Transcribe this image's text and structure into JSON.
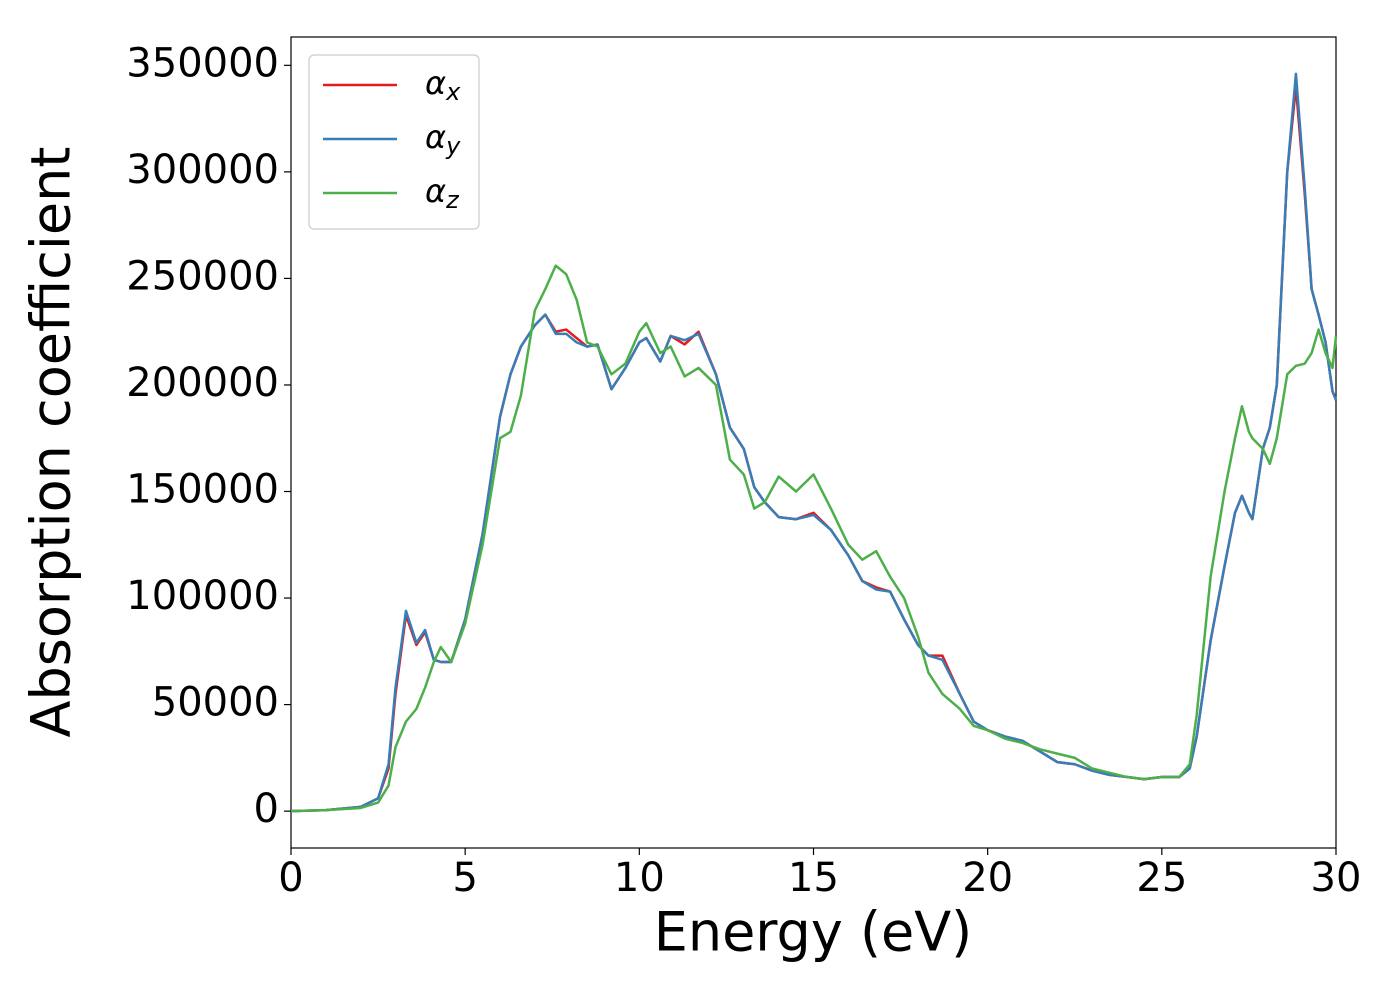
{
  "chart_data": {
    "type": "line",
    "xlabel": "Energy (eV)",
    "ylabel": "Absorption coefficient",
    "x": [
      0,
      1,
      2,
      2.5,
      2.8,
      3.0,
      3.3,
      3.6,
      3.85,
      4.1,
      4.3,
      4.6,
      5.0,
      5.5,
      6.0,
      6.3,
      6.6,
      7.0,
      7.3,
      7.6,
      7.9,
      8.2,
      8.5,
      8.8,
      9.2,
      9.6,
      10.0,
      10.2,
      10.6,
      10.9,
      11.3,
      11.7,
      12.2,
      12.6,
      13.0,
      13.3,
      13.6,
      14.0,
      14.5,
      15.0,
      15.5,
      16.0,
      16.4,
      16.8,
      17.2,
      17.6,
      18.0,
      18.3,
      18.7,
      19.2,
      19.6,
      20.0,
      20.5,
      21.0,
      21.5,
      22.0,
      22.5,
      23.0,
      23.5,
      24.0,
      24.5,
      25.0,
      25.5,
      25.8,
      26.0,
      26.4,
      26.8,
      27.1,
      27.3,
      27.5,
      27.6,
      27.9,
      28.1,
      28.3,
      28.6,
      28.85,
      29.1,
      29.3,
      29.5,
      29.7,
      29.9,
      30.0
    ],
    "series": [
      {
        "name": "αx",
        "color": "#e41a1c",
        "values": [
          0,
          500,
          2000,
          6000,
          20000,
          55000,
          92000,
          78000,
          84000,
          71000,
          70000,
          70000,
          90000,
          130000,
          185000,
          205000,
          218000,
          228000,
          233000,
          225000,
          226000,
          222000,
          218000,
          219000,
          198000,
          208000,
          220000,
          222000,
          211000,
          223000,
          219000,
          225000,
          205000,
          180000,
          170000,
          152000,
          145000,
          138000,
          137000,
          140000,
          132000,
          120000,
          108000,
          105000,
          103000,
          90000,
          78000,
          73000,
          73000,
          55000,
          42000,
          38000,
          35000,
          33000,
          28000,
          23000,
          22000,
          19000,
          17000,
          16000,
          15000,
          16000,
          16000,
          20000,
          35000,
          80000,
          115000,
          140000,
          148000,
          140000,
          137000,
          170000,
          180000,
          200000,
          300000,
          340000,
          290000,
          245000,
          233000,
          220000,
          197000,
          193000
        ]
      },
      {
        "name": "αy",
        "color": "#377eb8",
        "values": [
          0,
          500,
          2000,
          6000,
          22000,
          58000,
          94000,
          79000,
          85000,
          71000,
          70000,
          70000,
          90000,
          130000,
          185000,
          205000,
          218000,
          228000,
          233000,
          224000,
          224000,
          220000,
          218000,
          219000,
          198000,
          208000,
          220000,
          222000,
          211000,
          223000,
          221000,
          224000,
          205000,
          180000,
          170000,
          152000,
          145000,
          138000,
          137000,
          139000,
          132000,
          120000,
          108000,
          104000,
          103000,
          90000,
          78000,
          73000,
          71000,
          55000,
          42000,
          38000,
          35000,
          33000,
          28000,
          23000,
          22000,
          19000,
          17000,
          16000,
          15000,
          16000,
          16000,
          20000,
          35000,
          80000,
          115000,
          140000,
          148000,
          140000,
          137000,
          170000,
          180000,
          200000,
          300000,
          346000,
          293000,
          245000,
          233000,
          220000,
          197000,
          193000
        ]
      },
      {
        "name": "αz",
        "color": "#4daf4a",
        "values": [
          0,
          500,
          1500,
          4000,
          12000,
          30000,
          42000,
          48000,
          58000,
          70000,
          77000,
          70000,
          88000,
          125000,
          175000,
          178000,
          195000,
          235000,
          245000,
          256000,
          252000,
          240000,
          220000,
          218000,
          205000,
          210000,
          225000,
          229000,
          215000,
          218000,
          204000,
          208000,
          200000,
          165000,
          158000,
          142000,
          145000,
          157000,
          150000,
          158000,
          142000,
          125000,
          118000,
          122000,
          110000,
          100000,
          82000,
          65000,
          55000,
          48000,
          40000,
          38000,
          34000,
          32000,
          29000,
          27000,
          25000,
          20000,
          18000,
          16000,
          15000,
          16000,
          16000,
          22000,
          45000,
          110000,
          150000,
          175000,
          190000,
          178000,
          175000,
          170000,
          163000,
          175000,
          205000,
          209000,
          210000,
          215000,
          226000,
          215000,
          208000,
          223000
        ]
      }
    ],
    "xlim": [
      0,
      30
    ],
    "xticks": [
      0,
      5,
      10,
      15,
      20,
      25,
      30
    ],
    "ylim": [
      -17300,
      363300
    ],
    "yticks": [
      0,
      50000,
      100000,
      150000,
      200000,
      250000,
      300000,
      350000
    ],
    "legend": "upper left",
    "grid": false
  }
}
